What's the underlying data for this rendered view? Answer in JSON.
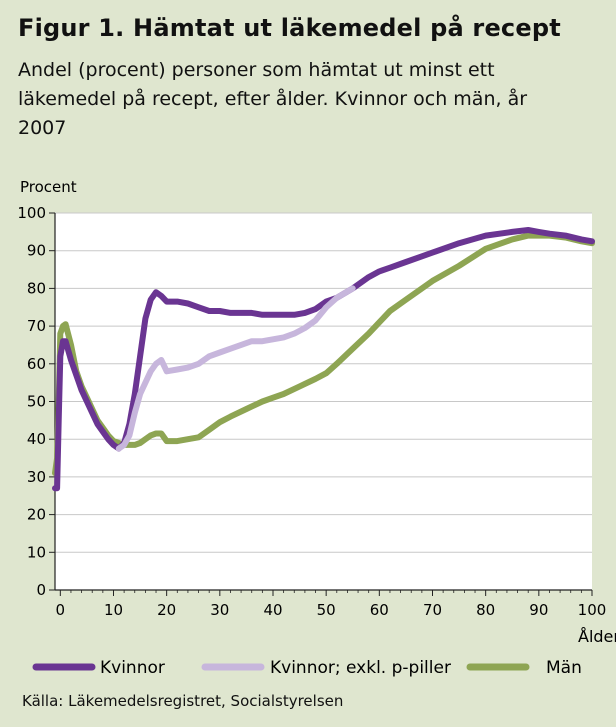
{
  "header": {
    "title": "Figur 1. Hämtat ut läkemedel på recept",
    "subtitle": "Andel (procent) personer som hämtat ut minst ett läkemedel på recept, efter ålder. Kvinnor och män, år 2007"
  },
  "source": "Källa: Läkemedelsregistret, Socialstyrelsen",
  "colors": {
    "background": "#dfe6cf",
    "plot_background": "#ffffff",
    "kvinnor": "#6a3592",
    "kvinnor_exkl": "#c7b6dc",
    "man": "#8ea553"
  },
  "chart_data": {
    "type": "line",
    "ylabel": "Procent",
    "xlabel": "Ålder",
    "xlim": [
      -1,
      100
    ],
    "ylim": [
      0,
      100
    ],
    "xticks": [
      0,
      10,
      20,
      30,
      40,
      50,
      60,
      70,
      80,
      90,
      100
    ],
    "yticks": [
      0,
      10,
      20,
      30,
      40,
      50,
      60,
      70,
      80,
      90,
      100
    ],
    "grid": true,
    "legend_position": "bottom",
    "series": [
      {
        "name": "Kvinnor",
        "color": "#6a3592",
        "x": [
          -1,
          -0.6,
          -0.3,
          0,
          0.5,
          1,
          2,
          3,
          4,
          5,
          6,
          7,
          8,
          9,
          10,
          11,
          12,
          13,
          14,
          15,
          16,
          17,
          18,
          19,
          20,
          22,
          24,
          26,
          28,
          30,
          32,
          34,
          36,
          38,
          40,
          42,
          44,
          46,
          48,
          50,
          52,
          55,
          58,
          60,
          62,
          65,
          70,
          75,
          80,
          85,
          88,
          90,
          92,
          95,
          98,
          100
        ],
        "y": [
          27,
          27,
          45,
          62,
          66,
          66,
          61,
          57,
          53,
          50,
          47,
          44,
          42,
          40,
          38.5,
          37.5,
          39,
          44,
          52,
          62,
          72,
          77,
          79,
          78,
          76.5,
          76.5,
          76,
          75,
          74,
          74,
          73.5,
          73.5,
          73.5,
          73,
          73,
          73,
          73,
          73.5,
          74.5,
          76.5,
          77.5,
          80,
          83,
          84.5,
          85.5,
          87,
          89.5,
          92,
          94,
          95,
          95.5,
          95,
          94.5,
          94,
          93,
          92.5
        ]
      },
      {
        "name": "Kvinnor; exkl. p-piller",
        "color": "#c7b6dc",
        "x": [
          11,
          12,
          13,
          14,
          15,
          16,
          17,
          18,
          19,
          20,
          22,
          24,
          26,
          28,
          30,
          32,
          34,
          36,
          38,
          40,
          42,
          44,
          46,
          48,
          50,
          52,
          55
        ],
        "y": [
          37.5,
          38.5,
          41,
          47,
          52,
          55,
          58,
          60,
          61,
          58,
          58.5,
          59,
          60,
          62,
          63,
          64,
          65,
          66,
          66,
          66.5,
          67,
          68,
          69.5,
          71.5,
          75,
          77.5,
          80
        ]
      },
      {
        "name": "Män",
        "color": "#8ea553",
        "x": [
          -1,
          -0.6,
          -0.3,
          0,
          0.5,
          1,
          2,
          3,
          4,
          5,
          6,
          7,
          8,
          9,
          10,
          11,
          12,
          13,
          14,
          15,
          16,
          17,
          18,
          19,
          20,
          22,
          24,
          26,
          28,
          30,
          32,
          35,
          38,
          40,
          42,
          45,
          48,
          50,
          52,
          55,
          58,
          60,
          62,
          65,
          68,
          70,
          75,
          80,
          85,
          88,
          90,
          92,
          95,
          98,
          100
        ],
        "y": [
          31,
          35,
          50,
          68,
          70,
          70.5,
          65,
          58,
          54,
          51,
          48,
          45,
          43,
          41,
          39.5,
          39,
          38.5,
          38.5,
          38.5,
          39,
          40,
          41,
          41.5,
          41.5,
          39.5,
          39.5,
          40,
          40.5,
          42.5,
          44.5,
          46,
          48,
          50,
          51,
          52,
          54,
          56,
          57.5,
          60,
          64,
          68,
          71,
          74,
          77,
          80,
          82,
          86,
          90.5,
          93,
          94,
          94,
          94,
          93.5,
          92.5,
          92
        ]
      }
    ]
  }
}
